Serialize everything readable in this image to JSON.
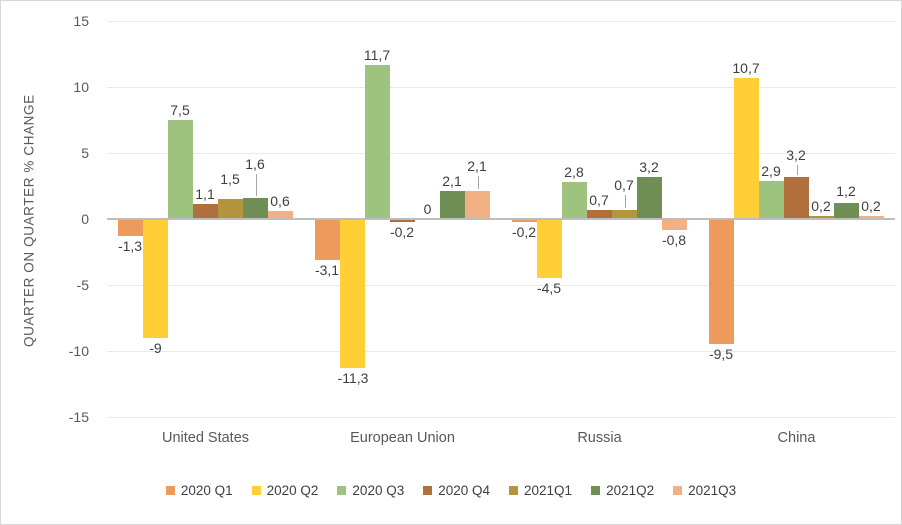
{
  "chart_data": {
    "type": "bar",
    "title": "",
    "ylabel": "QUARTER ON QUARTER % CHANGE",
    "xlabel": "",
    "categories": [
      "United States",
      "European Union",
      "Russia",
      "China"
    ],
    "series": [
      {
        "name": "2020 Q1",
        "color": "#EC9B5D",
        "values": [
          -1.3,
          -3.1,
          -0.2,
          -9.5
        ],
        "labels": [
          "-1,3",
          "-3,1",
          "-0,2",
          "-9,5"
        ]
      },
      {
        "name": "2020 Q2",
        "color": "#FFCF35",
        "values": [
          -9,
          -11.3,
          -4.5,
          10.7
        ],
        "labels": [
          "-9",
          "-11,3",
          "-4,5",
          "10,7"
        ]
      },
      {
        "name": "2020 Q3",
        "color": "#9DC37E",
        "values": [
          7.5,
          11.7,
          2.8,
          2.9
        ],
        "labels": [
          "7,5",
          "11,7",
          "2,8",
          "2,9"
        ]
      },
      {
        "name": "2020 Q4",
        "color": "#B06F3B",
        "values": [
          1.1,
          -0.2,
          0.7,
          3.2
        ],
        "labels": [
          "1,1",
          "-0,2",
          "0,7",
          "3,2"
        ]
      },
      {
        "name": "2021Q1",
        "color": "#B2953D",
        "values": [
          1.5,
          0,
          0.7,
          0.2
        ],
        "labels": [
          "1,5",
          "0",
          "0,7",
          "0,2"
        ]
      },
      {
        "name": "2021Q2",
        "color": "#6F8F55",
        "values": [
          1.6,
          2.1,
          3.2,
          1.2
        ],
        "labels": [
          "1,6",
          "2,1",
          "3,2",
          "1,2"
        ]
      },
      {
        "name": "2021Q3",
        "color": "#F3B183",
        "values": [
          0.6,
          2.1,
          -0.8,
          0.2
        ],
        "labels": [
          "0,6",
          "2,1",
          "-0,8",
          "0,2"
        ]
      }
    ],
    "y_axis": {
      "min": -15,
      "max": 15,
      "step": 5,
      "ticks": [
        15,
        10,
        5,
        0,
        -5,
        -10,
        -15
      ],
      "tick_labels": [
        "15",
        "10",
        "5",
        "0",
        "-5",
        "-10",
        "-15"
      ]
    },
    "grid": true,
    "legend_position": "bottom",
    "decimal_separator": ",",
    "colors": {
      "axis_line": "#BDBDBD",
      "gridline": "#E9E9E9",
      "data_label": "#3F3F3F",
      "axis_text": "#595959",
      "border": "#D7D7D7"
    }
  }
}
